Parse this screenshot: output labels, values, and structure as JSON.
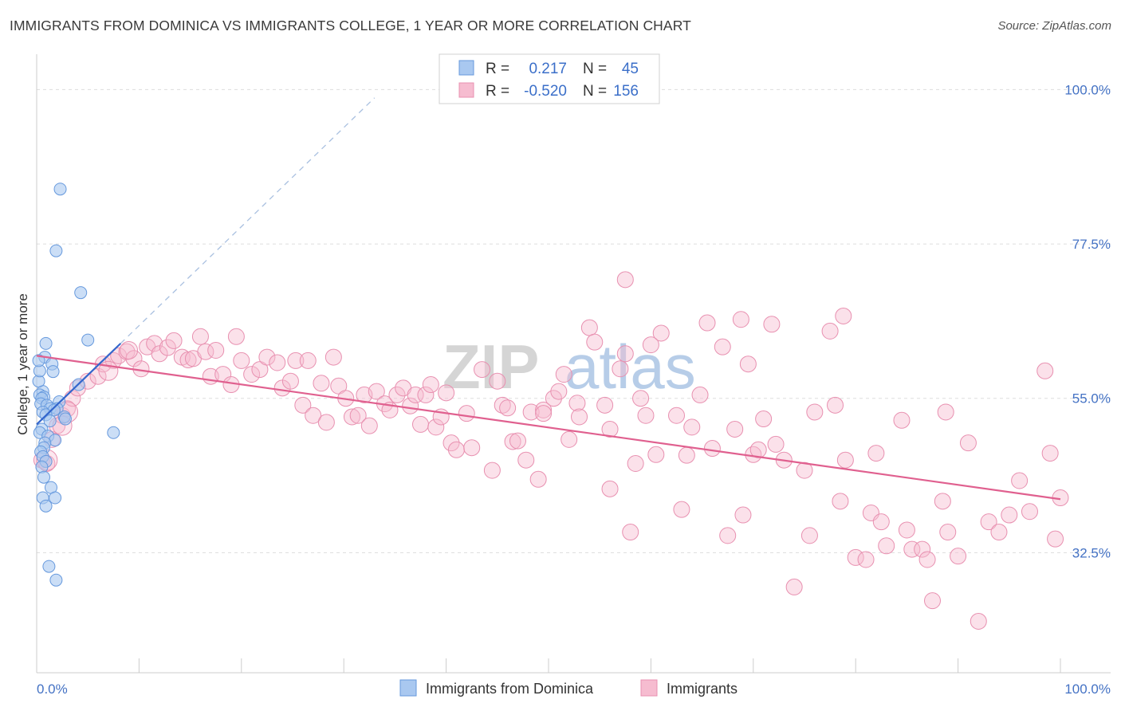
{
  "title": "IMMIGRANTS FROM DOMINICA VS IMMIGRANTS COLLEGE, 1 YEAR OR MORE CORRELATION CHART",
  "source": "Source: ZipAtlas.com",
  "watermark": {
    "part1": "ZIP",
    "part2": "atlas"
  },
  "colors": {
    "blue_fill": "#a9c8f0",
    "blue_stroke": "#6699dd",
    "blue_line": "#3366cc",
    "pink_fill": "#f6bcd0",
    "pink_stroke": "#e890b0",
    "pink_line": "#e0608f",
    "axis_text": "#4472c4",
    "grid": "#dddddd"
  },
  "legend": {
    "r_label": "R =",
    "n_label": "N =",
    "rows": [
      {
        "r": "0.217",
        "n": "45"
      },
      {
        "r": "-0.520",
        "n": "156"
      }
    ]
  },
  "chart_data": {
    "type": "scatter",
    "xlabel": "",
    "ylabel": "College, 1 year or more",
    "xlim": [
      0,
      100
    ],
    "ylim": [
      15,
      104
    ],
    "x_tick_labels": [
      "0.0%",
      "100.0%"
    ],
    "y_ticks": [
      {
        "value": 32.5,
        "label": "32.5%"
      },
      {
        "value": 55.0,
        "label": "55.0%"
      },
      {
        "value": 77.5,
        "label": "77.5%"
      },
      {
        "value": 100.0,
        "label": "100.0%"
      }
    ],
    "grid": "horizontal dashed",
    "legend_position": "top-center",
    "series": [
      {
        "name": "Immigrants from Dominica",
        "color": "blue",
        "trend": {
          "x1": 0,
          "y1": 51.2,
          "x2": 8.2,
          "y2": 63.0
        },
        "trend_extension": {
          "x1": 8.2,
          "y1": 63.0,
          "x2": 33,
          "y2": 98.8
        },
        "points": [
          [
            2.3,
            85.5
          ],
          [
            1.9,
            76.5
          ],
          [
            4.3,
            70.4
          ],
          [
            5,
            63.5
          ],
          [
            0.9,
            63
          ],
          [
            0.8,
            61
          ],
          [
            1.5,
            60
          ],
          [
            1.6,
            58.9
          ],
          [
            4.1,
            57
          ],
          [
            0.6,
            56
          ],
          [
            0.3,
            55.5
          ],
          [
            0.7,
            55.2
          ],
          [
            0.5,
            55
          ],
          [
            2.2,
            54.5
          ],
          [
            0.4,
            54.2
          ],
          [
            1,
            54
          ],
          [
            1.3,
            53.5
          ],
          [
            2,
            53.5
          ],
          [
            1.7,
            53.3
          ],
          [
            0.6,
            53
          ],
          [
            0.9,
            52.6
          ],
          [
            2.7,
            52.3
          ],
          [
            2.8,
            52
          ],
          [
            1.3,
            51.7
          ],
          [
            0.5,
            50.5
          ],
          [
            0.3,
            50
          ],
          [
            1.1,
            49.5
          ],
          [
            1.8,
            48.9
          ],
          [
            0.8,
            48.5
          ],
          [
            0.7,
            47.8
          ],
          [
            0.4,
            47.2
          ],
          [
            0.6,
            46.5
          ],
          [
            0.9,
            45.8
          ],
          [
            0.5,
            45
          ],
          [
            7.5,
            50
          ],
          [
            0.7,
            43.5
          ],
          [
            1.4,
            42
          ],
          [
            1.8,
            40.5
          ],
          [
            0.6,
            40.5
          ],
          [
            0.9,
            39.3
          ],
          [
            1.2,
            30.5
          ],
          [
            1.9,
            28.5
          ],
          [
            0.2,
            57.5
          ],
          [
            0.3,
            59
          ],
          [
            0.2,
            60.5
          ]
        ]
      },
      {
        "name": "Immigrants",
        "color": "pink",
        "trend": {
          "x1": 0,
          "y1": 61.2,
          "x2": 100,
          "y2": 40.3
        },
        "points": [
          [
            0.5,
            46
          ],
          [
            1,
            45.5
          ],
          [
            1.5,
            49
          ],
          [
            2,
            51
          ],
          [
            2.5,
            52.5
          ],
          [
            3,
            53.5
          ],
          [
            3.5,
            55
          ],
          [
            4,
            56.5
          ],
          [
            5,
            57.5
          ],
          [
            6,
            58.2
          ],
          [
            6.5,
            60
          ],
          [
            7.5,
            60.5
          ],
          [
            8,
            61.2
          ],
          [
            8.8,
            61.8
          ],
          [
            9.5,
            60.8
          ],
          [
            10.2,
            59.3
          ],
          [
            10.8,
            62.5
          ],
          [
            11.5,
            63
          ],
          [
            12,
            61.5
          ],
          [
            12.8,
            62.4
          ],
          [
            13.4,
            63.4
          ],
          [
            14.2,
            61
          ],
          [
            14.8,
            60.6
          ],
          [
            15.3,
            60.8
          ],
          [
            16,
            64
          ],
          [
            16.5,
            61.8
          ],
          [
            17,
            58.2
          ],
          [
            17.5,
            62
          ],
          [
            18.2,
            58.5
          ],
          [
            19,
            57
          ],
          [
            19.5,
            64
          ],
          [
            20,
            60.5
          ],
          [
            21,
            58.5
          ],
          [
            21.8,
            59.2
          ],
          [
            22.5,
            61
          ],
          [
            23.5,
            60.2
          ],
          [
            24,
            56.5
          ],
          [
            24.8,
            57.5
          ],
          [
            25.3,
            60.5
          ],
          [
            26,
            54
          ],
          [
            26.5,
            60.5
          ],
          [
            27,
            52.5
          ],
          [
            27.8,
            57.2
          ],
          [
            28.3,
            51.5
          ],
          [
            29,
            61
          ],
          [
            29.5,
            56.8
          ],
          [
            30.2,
            55
          ],
          [
            30.8,
            52.3
          ],
          [
            31.4,
            52.5
          ],
          [
            32,
            55.5
          ],
          [
            32.5,
            51
          ],
          [
            33.2,
            56
          ],
          [
            34,
            54.2
          ],
          [
            34.5,
            53.3
          ],
          [
            35.2,
            55.5
          ],
          [
            35.8,
            56.5
          ],
          [
            36.5,
            53.9
          ],
          [
            37,
            55.5
          ],
          [
            37.5,
            51.2
          ],
          [
            38,
            55.5
          ],
          [
            38.5,
            57
          ],
          [
            39,
            50.8
          ],
          [
            39.5,
            52.3
          ],
          [
            40,
            55.8
          ],
          [
            40.5,
            48.5
          ],
          [
            41,
            47.5
          ],
          [
            42,
            52.8
          ],
          [
            42.5,
            47.8
          ],
          [
            43.5,
            59.2
          ],
          [
            44.5,
            44.5
          ],
          [
            45,
            57.5
          ],
          [
            45.5,
            54
          ],
          [
            46,
            53.6
          ],
          [
            46.5,
            48.7
          ],
          [
            47,
            48.8
          ],
          [
            47.8,
            46
          ],
          [
            48.3,
            53
          ],
          [
            49,
            43.2
          ],
          [
            49.5,
            53.3
          ],
          [
            50.5,
            55
          ],
          [
            51,
            56
          ],
          [
            51.5,
            58.5
          ],
          [
            52,
            49
          ],
          [
            52.8,
            54.3
          ],
          [
            54,
            65.3
          ],
          [
            54.5,
            63.2
          ],
          [
            55.5,
            54
          ],
          [
            56,
            41.8
          ],
          [
            57,
            59.3
          ],
          [
            57.5,
            61.5
          ],
          [
            58,
            35.5
          ],
          [
            58.5,
            45.5
          ],
          [
            59,
            55
          ],
          [
            59.5,
            52.5
          ],
          [
            60.5,
            46.8
          ],
          [
            61,
            64.5
          ],
          [
            62.5,
            52.5
          ],
          [
            63,
            38.8
          ],
          [
            63.5,
            46.7
          ],
          [
            64,
            50.8
          ],
          [
            64.8,
            55.5
          ],
          [
            65.5,
            66
          ],
          [
            66,
            47.7
          ],
          [
            67,
            62.5
          ],
          [
            67.5,
            35
          ],
          [
            68.2,
            50.5
          ],
          [
            68.8,
            66.5
          ],
          [
            69,
            38
          ],
          [
            70,
            46.8
          ],
          [
            70.5,
            47.5
          ],
          [
            71,
            52
          ],
          [
            71.8,
            65.8
          ],
          [
            72.2,
            48.3
          ],
          [
            73,
            46
          ],
          [
            74,
            27.5
          ],
          [
            75,
            44.5
          ],
          [
            75.5,
            35
          ],
          [
            76,
            53
          ],
          [
            77.5,
            64.8
          ],
          [
            78,
            54
          ],
          [
            78.5,
            40
          ],
          [
            79,
            46
          ],
          [
            80,
            31.8
          ],
          [
            81,
            31.5
          ],
          [
            81.5,
            38.3
          ],
          [
            82,
            47
          ],
          [
            82.5,
            37
          ],
          [
            83,
            33.5
          ],
          [
            84.5,
            51.8
          ],
          [
            85,
            35.8
          ],
          [
            85.5,
            33
          ],
          [
            86.5,
            33
          ],
          [
            87,
            31.5
          ],
          [
            87.5,
            25.5
          ],
          [
            88.5,
            40
          ],
          [
            88.8,
            53
          ],
          [
            89,
            35.5
          ],
          [
            90,
            32
          ],
          [
            91,
            48.5
          ],
          [
            92,
            22.5
          ],
          [
            93,
            37
          ],
          [
            94,
            35.5
          ],
          [
            95,
            38
          ],
          [
            96,
            43
          ],
          [
            97,
            38.5
          ],
          [
            98.5,
            59
          ],
          [
            99,
            47
          ],
          [
            99.5,
            34.5
          ],
          [
            100,
            40.5
          ],
          [
            57.5,
            72.3
          ],
          [
            78.8,
            67
          ],
          [
            60,
            62.8
          ],
          [
            69.5,
            60
          ],
          [
            49.5,
            52.8
          ],
          [
            53,
            52.3
          ],
          [
            56,
            50.5
          ]
        ]
      }
    ]
  },
  "bottom_legend": {
    "items": [
      {
        "label": "Immigrants from Dominica"
      },
      {
        "label": "Immigrants"
      }
    ]
  }
}
